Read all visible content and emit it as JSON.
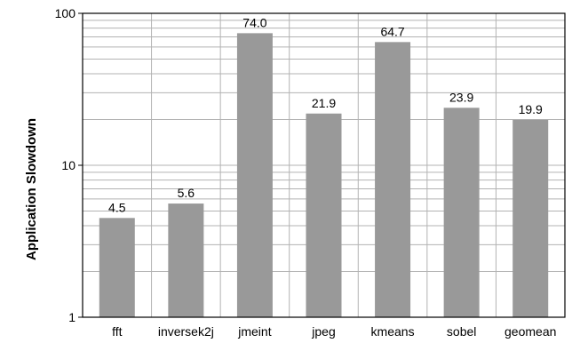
{
  "chart_data": {
    "type": "bar",
    "title": "",
    "xlabel": "",
    "ylabel": "Application Slowdown",
    "yscale": "log",
    "ylim": [
      1,
      100
    ],
    "yticks": [
      1,
      10,
      100
    ],
    "ytick_labels": [
      "1",
      "10",
      "100"
    ],
    "grid": true,
    "categories": [
      "fft",
      "inversek2j",
      "jmeint",
      "jpeg",
      "kmeans",
      "sobel",
      "geomean"
    ],
    "values": [
      4.5,
      5.6,
      74.0,
      21.9,
      64.7,
      23.9,
      19.9
    ],
    "value_labels": [
      "4.5",
      "5.6",
      "74.0",
      "21.9",
      "64.7",
      "23.9",
      "19.9"
    ],
    "bar_color": "#999999",
    "grid_color": "#b3b3b3"
  }
}
